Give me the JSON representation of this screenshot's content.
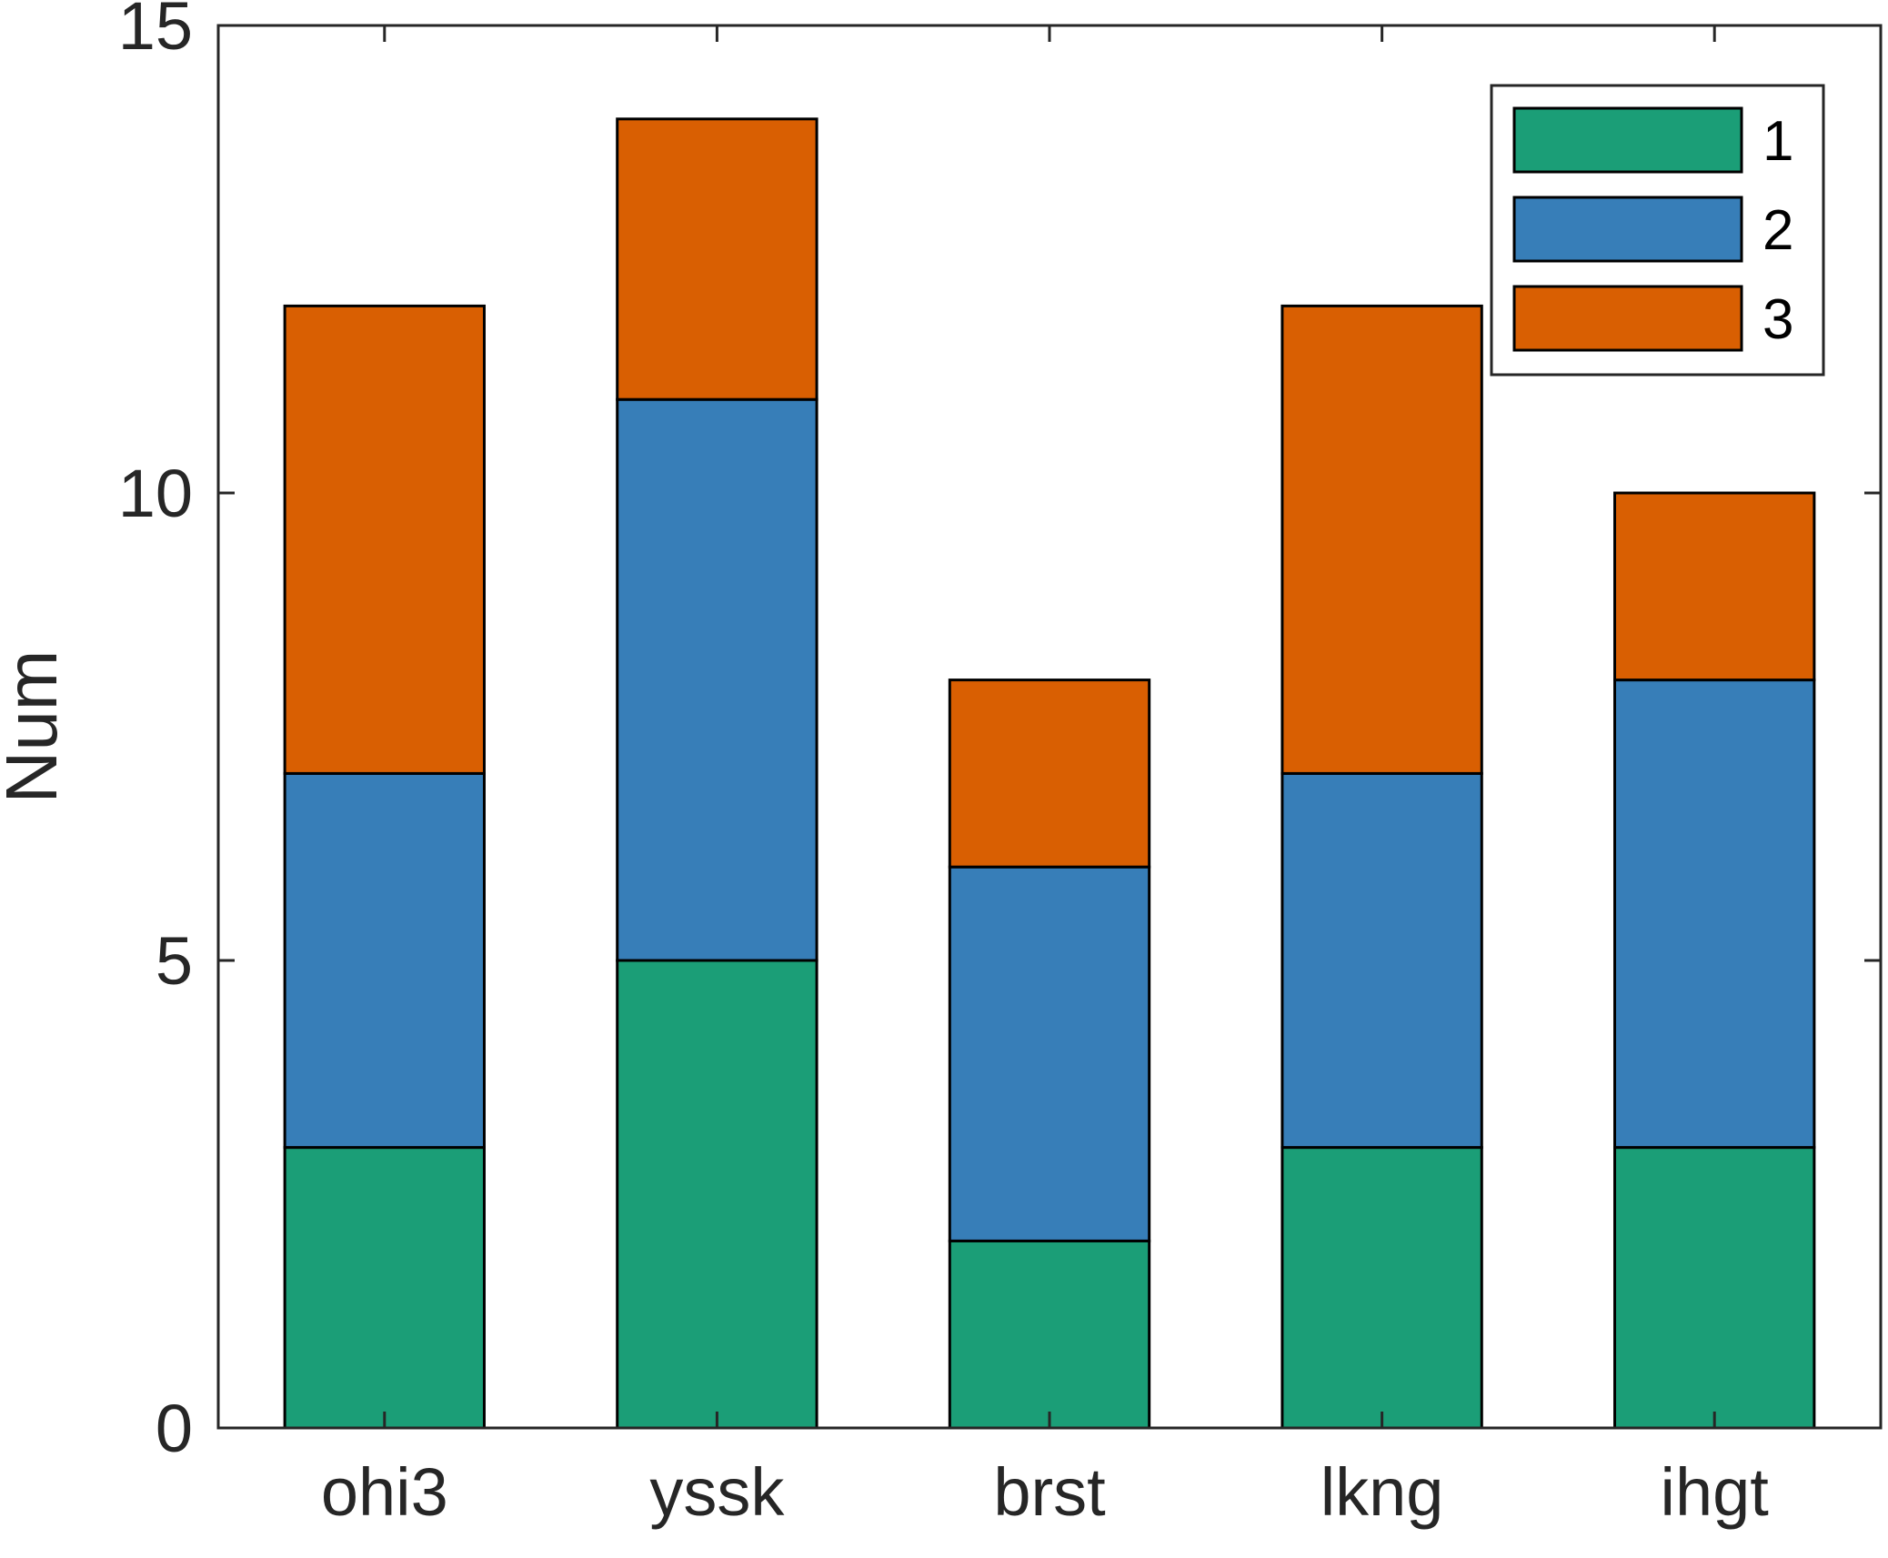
{
  "chart_data": {
    "type": "bar",
    "stacked": true,
    "title": "",
    "xlabel": "",
    "ylabel": "Num",
    "categories": [
      "ohi3",
      "yssk",
      "brst",
      "lkng",
      "ihgt"
    ],
    "series": [
      {
        "name": "1",
        "values": [
          3,
          5,
          2,
          3,
          3
        ],
        "color": "#1b9e77"
      },
      {
        "name": "2",
        "values": [
          4,
          6,
          4,
          4,
          5
        ],
        "color": "#377eb8"
      },
      {
        "name": "3",
        "values": [
          5,
          3,
          2,
          5,
          2
        ],
        "color": "#d95f02"
      }
    ],
    "ylim": [
      0,
      15
    ],
    "yticks": [
      0,
      5,
      10,
      15
    ],
    "grid": false,
    "legend_position": "top-right"
  }
}
